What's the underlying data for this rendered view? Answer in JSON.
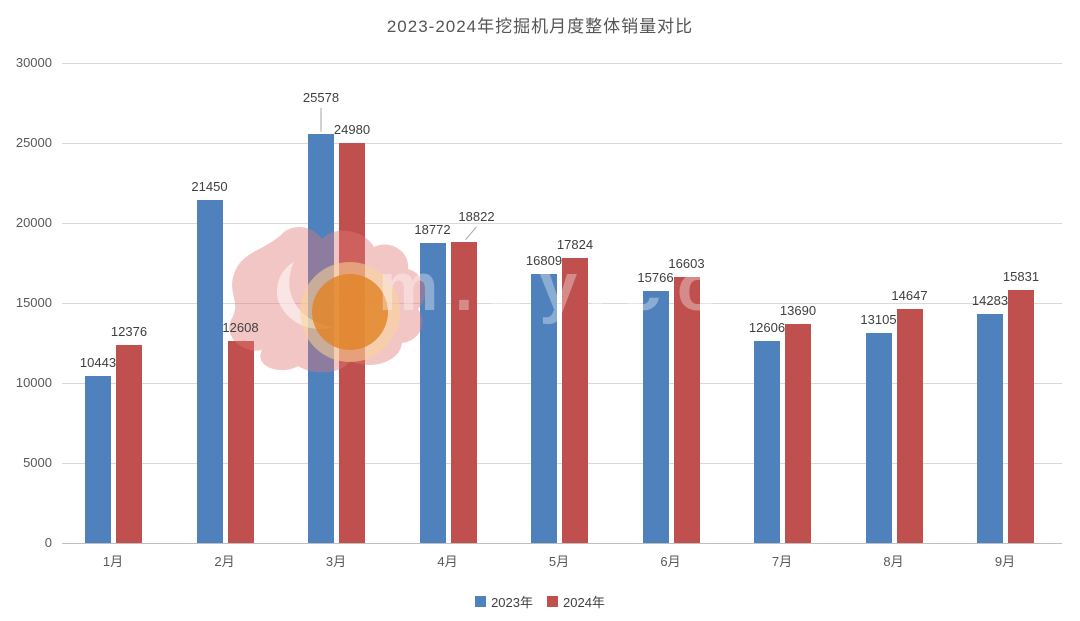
{
  "chart_data": {
    "type": "bar",
    "title": "2023-2024年挖掘机月度整体销量对比",
    "categories": [
      "1月",
      "2月",
      "3月",
      "4月",
      "5月",
      "6月",
      "7月",
      "8月",
      "9月"
    ],
    "series": [
      {
        "name": "2023年",
        "color": "#4F81BD",
        "values": [
          10443,
          21450,
          25578,
          18772,
          16809,
          15766,
          12606,
          13105,
          14283
        ]
      },
      {
        "name": "2024年",
        "color": "#C0504D",
        "values": [
          12376,
          12608,
          24980,
          18822,
          17824,
          16603,
          13690,
          14647,
          15831
        ]
      }
    ],
    "ylim": [
      0,
      30000
    ],
    "yticks": [
      0,
      5000,
      10000,
      15000,
      20000,
      25000,
      30000
    ],
    "grid": true,
    "data_labels": true,
    "legend_position": "bottom",
    "label_overrides": {
      "0-2": {
        "dy": -23,
        "leader": "vertical"
      },
      "1-3": {
        "dx": 13,
        "dy": -12,
        "leader": "diagonal"
      }
    }
  },
  "watermark": {
    "text": "m.zy.co",
    "logo": "flame-logo",
    "flame_color": "rgba(226,118,118,0.42)",
    "circle_color": "rgba(226,132,38,0.82)",
    "halo_color": "rgba(248,214,150,0.55)"
  }
}
